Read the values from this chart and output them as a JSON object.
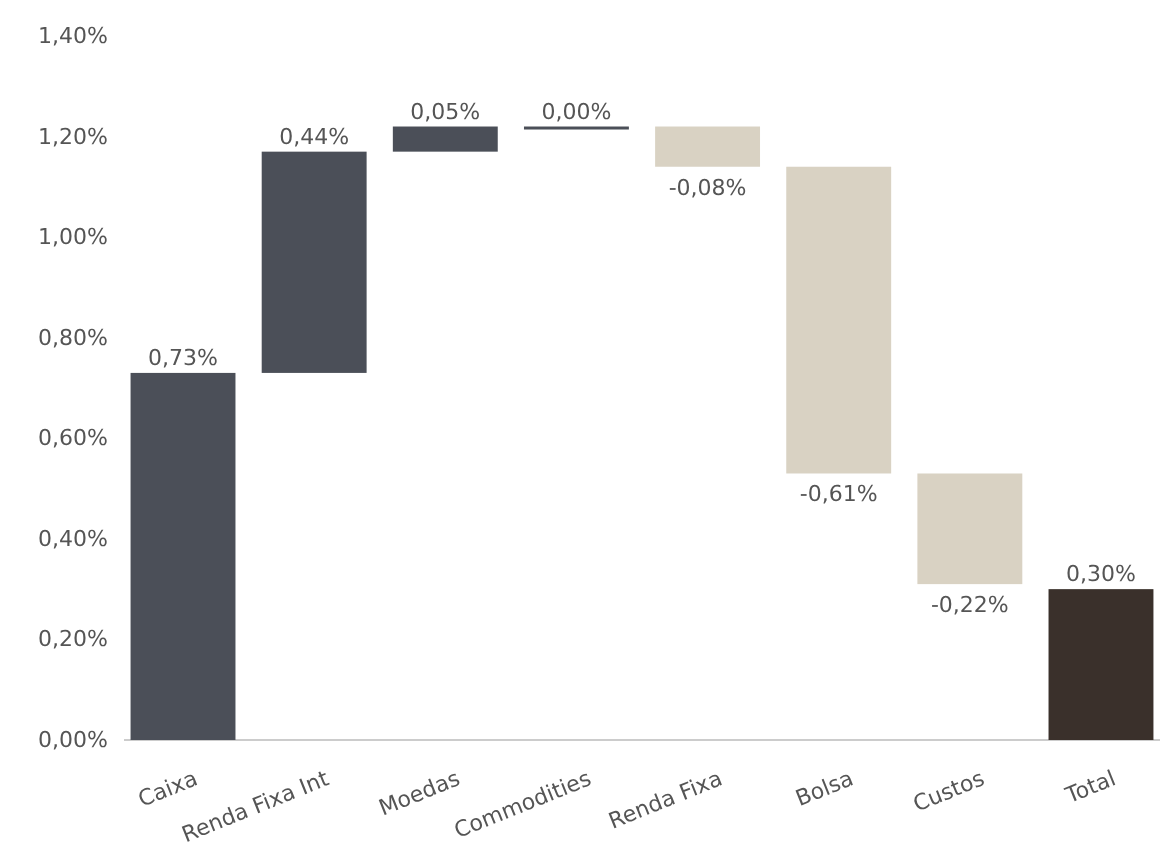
{
  "chart_data": {
    "type": "bar",
    "categories": [
      "Caixa",
      "Renda Fixa Int",
      "Moedas",
      "Commodities",
      "Renda Fixa",
      "Bolsa",
      "Custos",
      "Total"
    ],
    "values": [
      0.73,
      0.44,
      0.05,
      0.0,
      -0.08,
      -0.61,
      -0.22,
      0.3
    ],
    "base": [
      0,
      0.73,
      1.17,
      1.22,
      1.22,
      1.14,
      0.53,
      0
    ],
    "colors": [
      "#4b4f58",
      "#4b4f58",
      "#4b4f58",
      "#4b4f58",
      "#d9d2c3",
      "#d9d2c3",
      "#d9d2c3",
      "#3a302b"
    ],
    "value_labels": [
      "0,73%",
      "0,44%",
      "0,05%",
      "0,00%",
      "-0,08%",
      "-0,61%",
      "-0,22%",
      "0,30%"
    ],
    "ylim": [
      0,
      1.4
    ],
    "yticks": [
      {
        "value": 0,
        "label": "0,00%"
      },
      {
        "value": 0.2,
        "label": "0,20%"
      },
      {
        "value": 0.4,
        "label": "0,40%"
      },
      {
        "value": 0.6,
        "label": "0,60%"
      },
      {
        "value": 0.8,
        "label": "0,80%"
      },
      {
        "value": 1.0,
        "label": "1,00%"
      },
      {
        "value": 1.2,
        "label": "1,20%"
      },
      {
        "value": 1.4,
        "label": "1,40%"
      }
    ],
    "grid": false
  }
}
